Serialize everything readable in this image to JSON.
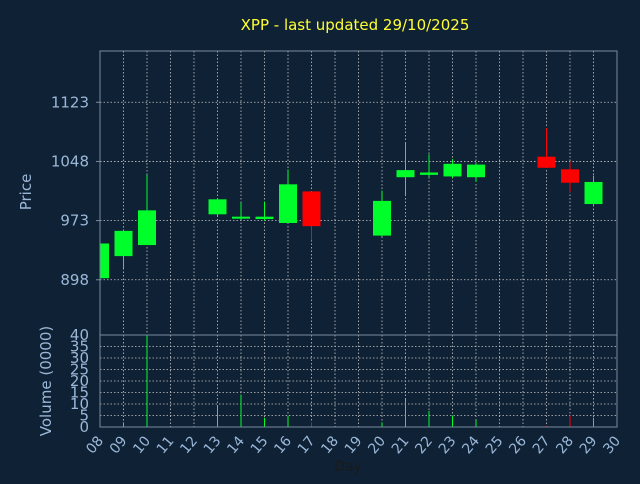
{
  "chart_data": {
    "type": "candlestick",
    "title": "XPP - last updated 29/10/2025",
    "price_panel": {
      "ylabel": "Price",
      "ylim": [
        828,
        1188
      ],
      "yticks": [
        898,
        973,
        1048,
        1123
      ]
    },
    "volume_panel": {
      "ylabel": "Volume (0000)",
      "ylim": [
        0,
        40
      ],
      "yticks": [
        0,
        5,
        10,
        15,
        20,
        25,
        30,
        35,
        40
      ]
    },
    "xlabel": "Day",
    "xlim": [
      8,
      30
    ],
    "x_ticks": [
      "08",
      "09",
      "10",
      "11",
      "12",
      "13",
      "14",
      "15",
      "16",
      "17",
      "18",
      "19",
      "20",
      "21",
      "22",
      "23",
      "24",
      "25",
      "26",
      "27",
      "28",
      "29",
      "30"
    ],
    "grid": true,
    "colors": {
      "background": "#0f2135",
      "up": "#00ff2a",
      "down": "#ff0000",
      "grid": "#c8c8c8",
      "axis_text": "#9bb8d8",
      "title": "#ffff33",
      "frame": "#7a8aa0"
    },
    "candles": [
      {
        "day": 8,
        "open": 900,
        "high": 944,
        "low": 900,
        "close": 944,
        "volume": 0.5
      },
      {
        "day": 9,
        "open": 928,
        "high": 961,
        "low": 913,
        "close": 960,
        "volume": 2
      },
      {
        "day": 10,
        "open": 942,
        "high": 1031,
        "low": 942,
        "close": 986,
        "volume": 40
      },
      {
        "day": 13,
        "open": 981,
        "high": 1001,
        "low": 979,
        "close": 1000,
        "volume": 9
      },
      {
        "day": 14,
        "open": 976,
        "high": 996,
        "low": 974,
        "close": 978,
        "volume": 14
      },
      {
        "day": 15,
        "open": 975,
        "high": 997,
        "low": 973,
        "close": 978,
        "volume": 4
      },
      {
        "day": 16,
        "open": 970,
        "high": 1038,
        "low": 970,
        "close": 1019,
        "volume": 5
      },
      {
        "day": 17,
        "open": 1010,
        "high": 1010,
        "low": 948,
        "close": 966,
        "volume": 2
      },
      {
        "day": 20,
        "open": 954,
        "high": 1011,
        "low": 953,
        "close": 998,
        "volume": 2
      },
      {
        "day": 21,
        "open": 1028,
        "high": 1072,
        "low": 1004,
        "close": 1037,
        "volume": 12
      },
      {
        "day": 22,
        "open": 1031,
        "high": 1057,
        "low": 1028,
        "close": 1034,
        "volume": 7
      },
      {
        "day": 23,
        "open": 1029,
        "high": 1051,
        "low": 1027,
        "close": 1045,
        "volume": 5
      },
      {
        "day": 24,
        "open": 1028,
        "high": 1047,
        "low": 1022,
        "close": 1044,
        "volume": 3
      },
      {
        "day": 27,
        "open": 1054,
        "high": 1090,
        "low": 1040,
        "close": 1040,
        "volume": 0.5
      },
      {
        "day": 28,
        "open": 1038,
        "high": 1048,
        "low": 1009,
        "close": 1021,
        "volume": 5
      },
      {
        "day": 29,
        "open": 994,
        "high": 1030,
        "low": 993,
        "close": 1022,
        "volume": 4
      }
    ]
  }
}
